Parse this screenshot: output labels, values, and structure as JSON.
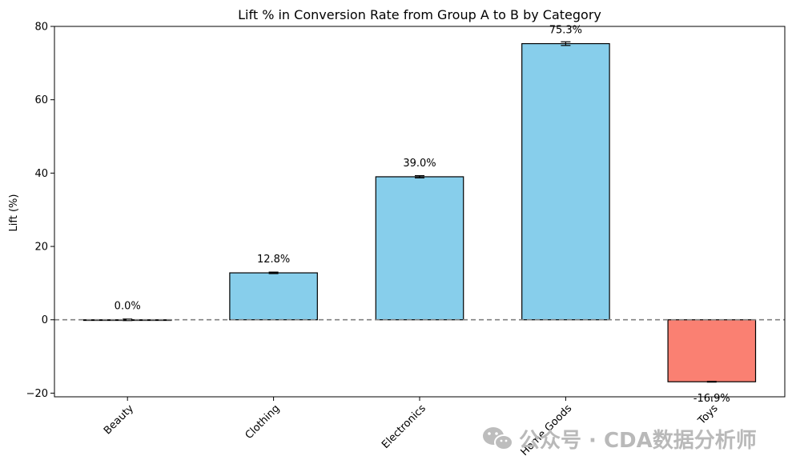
{
  "chart_data": {
    "type": "bar",
    "title": "Lift % in Conversion Rate from Group A to B by Category",
    "xlabel": "",
    "ylabel": "Lift (%)",
    "ylim": [
      -21,
      80
    ],
    "yticks": [
      -20,
      0,
      20,
      40,
      60,
      80
    ],
    "categories": [
      "Beauty",
      "Clothing",
      "Electronics",
      "Home Goods",
      "Toys"
    ],
    "values": [
      0.0,
      12.8,
      39.0,
      75.3,
      -16.9
    ],
    "error": [
      0.2,
      0.2,
      0.3,
      0.5,
      0.1
    ],
    "data_labels": [
      "0.0%",
      "12.8%",
      "39.0%",
      "75.3%",
      "-16.9%"
    ],
    "grid": false,
    "reference_line": 0,
    "colors": {
      "positive": "#87CEEB",
      "negative": "#FA8072",
      "edge": "#000000",
      "reference": "#808080"
    }
  },
  "watermark": {
    "text": "公众号 · CDA数据分析师",
    "icon": "wechat-icon"
  }
}
